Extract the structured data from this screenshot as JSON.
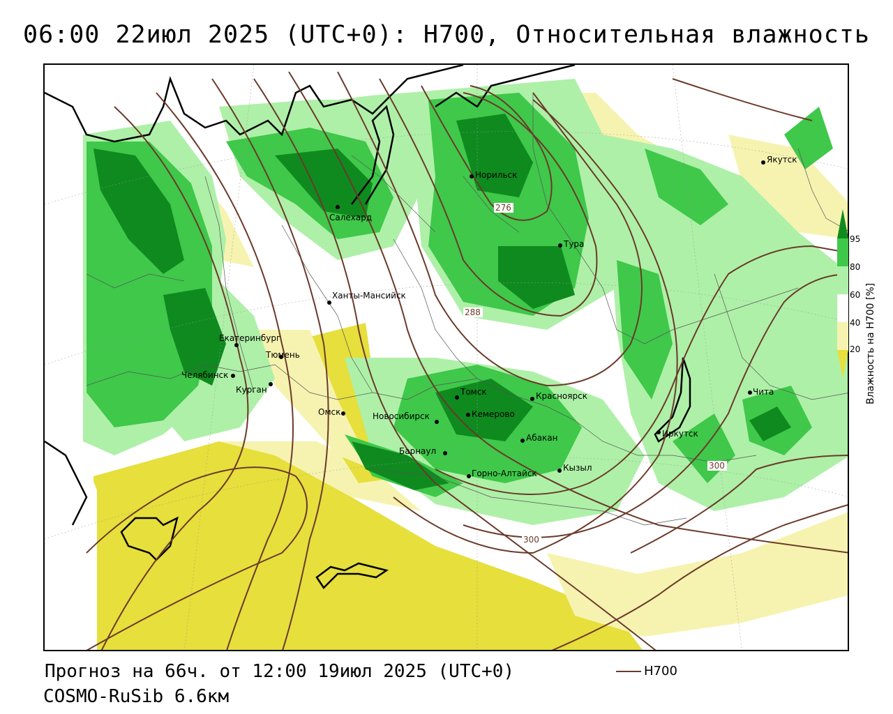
{
  "title": "06:00 22июл 2025 (UTC+0): H700, Относительная влажность",
  "footer": {
    "forecast": "Прогноз на 66ч. от 12:00 19июл 2025 (UTC+0)",
    "model": "COSMO-RuSib 6.6км"
  },
  "legend": {
    "h700_label": "H700",
    "line_color": "#6b3a2a"
  },
  "colorbar": {
    "label": "Влажность на H700 [%]",
    "ticks": [
      "95",
      "80",
      "60",
      "40",
      "20"
    ],
    "colors": {
      "dark_green": "#0f8a1f",
      "green": "#3fc84a",
      "light_green": "#aef0a8",
      "light_yellow": "#f6f3b0",
      "yellow": "#e6df3c"
    }
  },
  "contour_labels": [
    "276",
    "288",
    "300",
    "300"
  ],
  "cities": [
    "Норильск",
    "Салехард",
    "Тура",
    "Якутск",
    "Ханты-Мансийск",
    "Екатеринбург",
    "Тюмень",
    "Челябинск",
    "Курган",
    "Омск",
    "Новосибирск",
    "Томск",
    "Кемерово",
    "Красноярск",
    "Абакан",
    "Барнаул",
    "Горно-Алтайск",
    "Кызыл",
    "Иркутск",
    "Чита"
  ]
}
